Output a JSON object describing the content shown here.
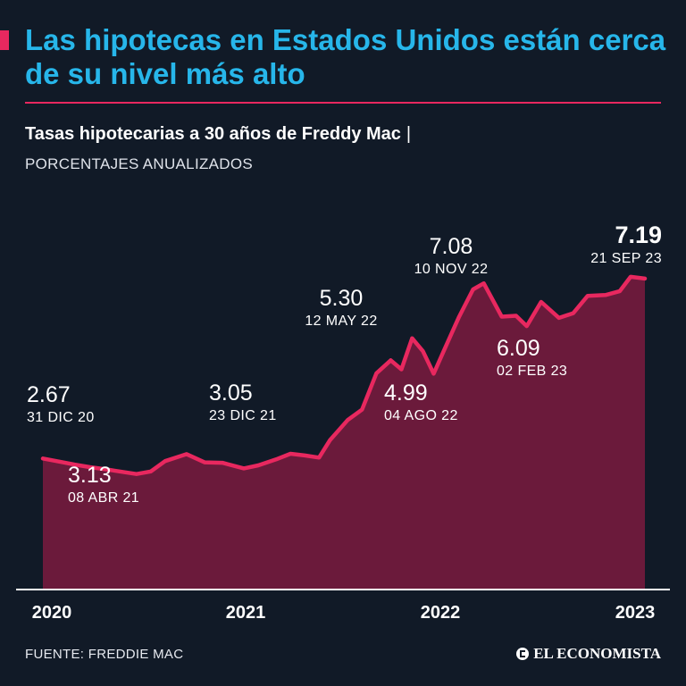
{
  "header": {
    "title": "Las hipotecas en Estados Unidos están cerca de su nivel más alto",
    "subtitle": "Tasas hipotecarias a 30 años de Freddy Mac",
    "subtitle_separator": "|",
    "units": "PORCENTAJES ANUALIZADOS"
  },
  "footer": {
    "source": "FUENTE: FREDDIE MAC",
    "brand": "EL ECONOMISTA"
  },
  "colors": {
    "background": "#111a27",
    "title": "#27b6ea",
    "accent": "#e8285f",
    "area_fill": "#6b1a3b"
  },
  "chart_data": {
    "type": "area",
    "title": "Tasas hipotecarias a 30 años de Freddy Mac",
    "ylabel": "PORCENTAJES ANUALIZADOS",
    "xlabel": "",
    "x_start": "2020-07-01",
    "x_end": "2023-09-21",
    "ylim": [
      0,
      7.6
    ],
    "grid": false,
    "legend": "none",
    "x_ticks": [
      {
        "label": "2020",
        "date": "2020-09-15"
      },
      {
        "label": "2021",
        "date": "2021-06-01"
      },
      {
        "label": "2022",
        "date": "2022-03-01"
      },
      {
        "label": "2023",
        "date": "2023-09-01"
      }
    ],
    "series": [
      {
        "points": [
          [
            "2020-07-01",
            3.03
          ],
          [
            "2020-08-01",
            2.96
          ],
          [
            "2020-09-01",
            2.89
          ],
          [
            "2020-10-01",
            2.83
          ],
          [
            "2020-11-01",
            2.78
          ],
          [
            "2020-12-31",
            2.67
          ],
          [
            "2021-01-28",
            2.73
          ],
          [
            "2021-02-25",
            2.97
          ],
          [
            "2021-04-08",
            3.13
          ],
          [
            "2021-05-13",
            2.94
          ],
          [
            "2021-06-17",
            2.93
          ],
          [
            "2021-07-29",
            2.8
          ],
          [
            "2021-08-26",
            2.87
          ],
          [
            "2021-09-30",
            3.01
          ],
          [
            "2021-10-28",
            3.14
          ],
          [
            "2021-11-25",
            3.1
          ],
          [
            "2021-12-23",
            3.05
          ],
          [
            "2022-01-13",
            3.45
          ],
          [
            "2022-02-17",
            3.92
          ],
          [
            "2022-03-17",
            4.16
          ],
          [
            "2022-04-14",
            5.0
          ],
          [
            "2022-05-12",
            5.3
          ],
          [
            "2022-06-02",
            5.09
          ],
          [
            "2022-06-23",
            5.81
          ],
          [
            "2022-07-14",
            5.51
          ],
          [
            "2022-08-04",
            4.99
          ],
          [
            "2022-08-25",
            5.55
          ],
          [
            "2022-09-22",
            6.29
          ],
          [
            "2022-10-20",
            6.94
          ],
          [
            "2022-11-10",
            7.08
          ],
          [
            "2022-12-15",
            6.31
          ],
          [
            "2023-01-12",
            6.33
          ],
          [
            "2023-02-02",
            6.09
          ],
          [
            "2023-03-02",
            6.65
          ],
          [
            "2023-04-06",
            6.28
          ],
          [
            "2023-05-04",
            6.39
          ],
          [
            "2023-06-01",
            6.79
          ],
          [
            "2023-07-06",
            6.81
          ],
          [
            "2023-08-03",
            6.9
          ],
          [
            "2023-08-24",
            7.23
          ],
          [
            "2023-09-21",
            7.19
          ]
        ]
      }
    ],
    "annotations": [
      {
        "value": "2.67",
        "date_label": "31 DIC 20",
        "date": "2020-12-31",
        "bold": false
      },
      {
        "value": "3.13",
        "date_label": "08 ABR 21",
        "date": "2021-04-08",
        "bold": false
      },
      {
        "value": "3.05",
        "date_label": "23 DIC 21",
        "date": "2021-12-23",
        "bold": false
      },
      {
        "value": "5.30",
        "date_label": "12 MAY 22",
        "date": "2022-05-12",
        "bold": false
      },
      {
        "value": "4.99",
        "date_label": "04 AGO 22",
        "date": "2022-08-04",
        "bold": false
      },
      {
        "value": "7.08",
        "date_label": "10 NOV 22",
        "date": "2022-11-10",
        "bold": false
      },
      {
        "value": "6.09",
        "date_label": "02 FEB 23",
        "date": "2023-02-02",
        "bold": false
      },
      {
        "value": "7.19",
        "date_label": "21 SEP 23",
        "date": "2023-09-21",
        "bold": true
      }
    ]
  }
}
